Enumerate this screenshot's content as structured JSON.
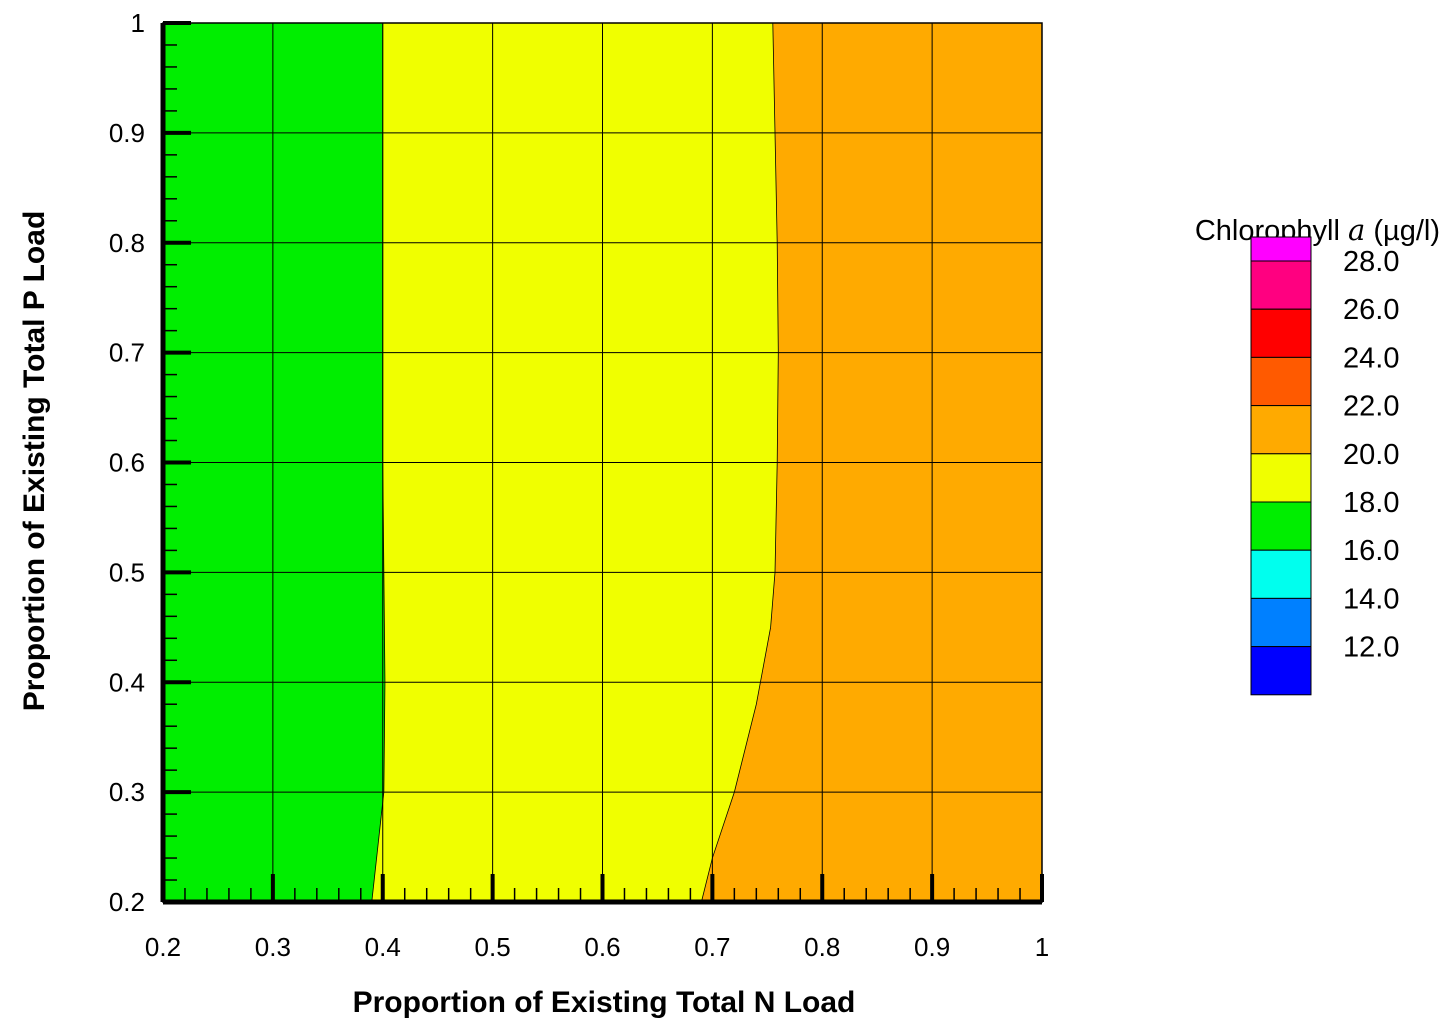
{
  "chart_data": {
    "type": "contour",
    "xlabel": "Proportion of Existing Total N Load",
    "ylabel": "Proportion of Existing Total P Load",
    "xlim": [
      0.2,
      1.0
    ],
    "ylim": [
      0.2,
      1.0
    ],
    "x_ticks": [
      "0.2",
      "0.3",
      "0.4",
      "0.5",
      "0.6",
      "0.7",
      "0.8",
      "0.9",
      "1"
    ],
    "y_ticks": [
      "0.2",
      "0.3",
      "0.4",
      "0.5",
      "0.6",
      "0.7",
      "0.8",
      "0.9",
      "1"
    ],
    "grid": true,
    "legend": {
      "title_prefix": "Chlorophyll ",
      "title_symbol": "a",
      "title_suffix": " (µg/l)",
      "position": "right",
      "levels": [
        {
          "label": "28.0",
          "color": "#ff00ff"
        },
        {
          "label": "26.0",
          "color": "#ff0080"
        },
        {
          "label": "24.0",
          "color": "#ff0000"
        },
        {
          "label": "22.0",
          "color": "#ff5a00"
        },
        {
          "label": "20.0",
          "color": "#ffaa00"
        },
        {
          "label": "18.0",
          "color": "#f0ff00"
        },
        {
          "label": "16.0",
          "color": "#00ee00"
        },
        {
          "label": "14.0",
          "color": "#00ffee"
        },
        {
          "label": "12.0",
          "color": "#0080ff"
        },
        {
          "label": "",
          "color": "#0000ff"
        }
      ]
    },
    "regions": [
      {
        "range": "16.0–18.0",
        "color": "#00ee00"
      },
      {
        "range": "18.0–20.0",
        "color": "#f0ff00"
      },
      {
        "range": "20.0–22.0",
        "color": "#ffaa00"
      }
    ],
    "contours": [
      {
        "level": 18.0,
        "points": [
          [
            0.39,
            0.2
          ],
          [
            0.401,
            0.3
          ],
          [
            0.402,
            0.4
          ],
          [
            0.401,
            0.5
          ],
          [
            0.4,
            0.6
          ],
          [
            0.4,
            0.7
          ],
          [
            0.4,
            0.8
          ],
          [
            0.4,
            0.9
          ],
          [
            0.4,
            1.0
          ]
        ]
      },
      {
        "level": 20.0,
        "points": [
          [
            0.69,
            0.2
          ],
          [
            0.7,
            0.24
          ],
          [
            0.72,
            0.3
          ],
          [
            0.74,
            0.38
          ],
          [
            0.753,
            0.45
          ],
          [
            0.757,
            0.5
          ],
          [
            0.759,
            0.6
          ],
          [
            0.76,
            0.7
          ],
          [
            0.759,
            0.8
          ],
          [
            0.757,
            0.9
          ],
          [
            0.755,
            1.0
          ]
        ]
      }
    ]
  }
}
